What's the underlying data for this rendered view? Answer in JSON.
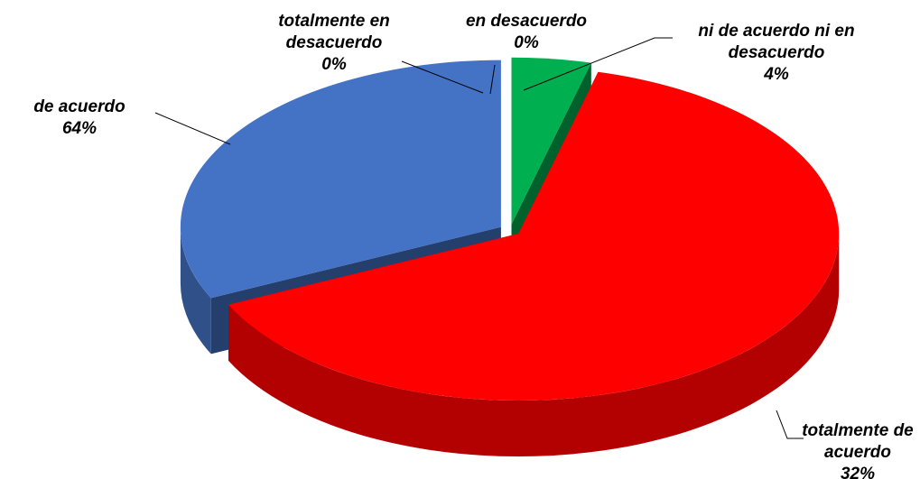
{
  "chart_data": {
    "type": "pie",
    "categories": [
      "totalmente en desacuerdo",
      "en desacuerdo",
      "ni de acuerdo ni en desacuerdo",
      "de acuerdo",
      "totalmente de acuerdo"
    ],
    "values": [
      0,
      0,
      4,
      64,
      32
    ],
    "value_labels": [
      "0%",
      "0%",
      "4%",
      "64%",
      "32%"
    ],
    "colors": [
      "#7f7f7f",
      "#c0504d",
      "#00b050",
      "#ff0000",
      "#4472c4"
    ]
  }
}
